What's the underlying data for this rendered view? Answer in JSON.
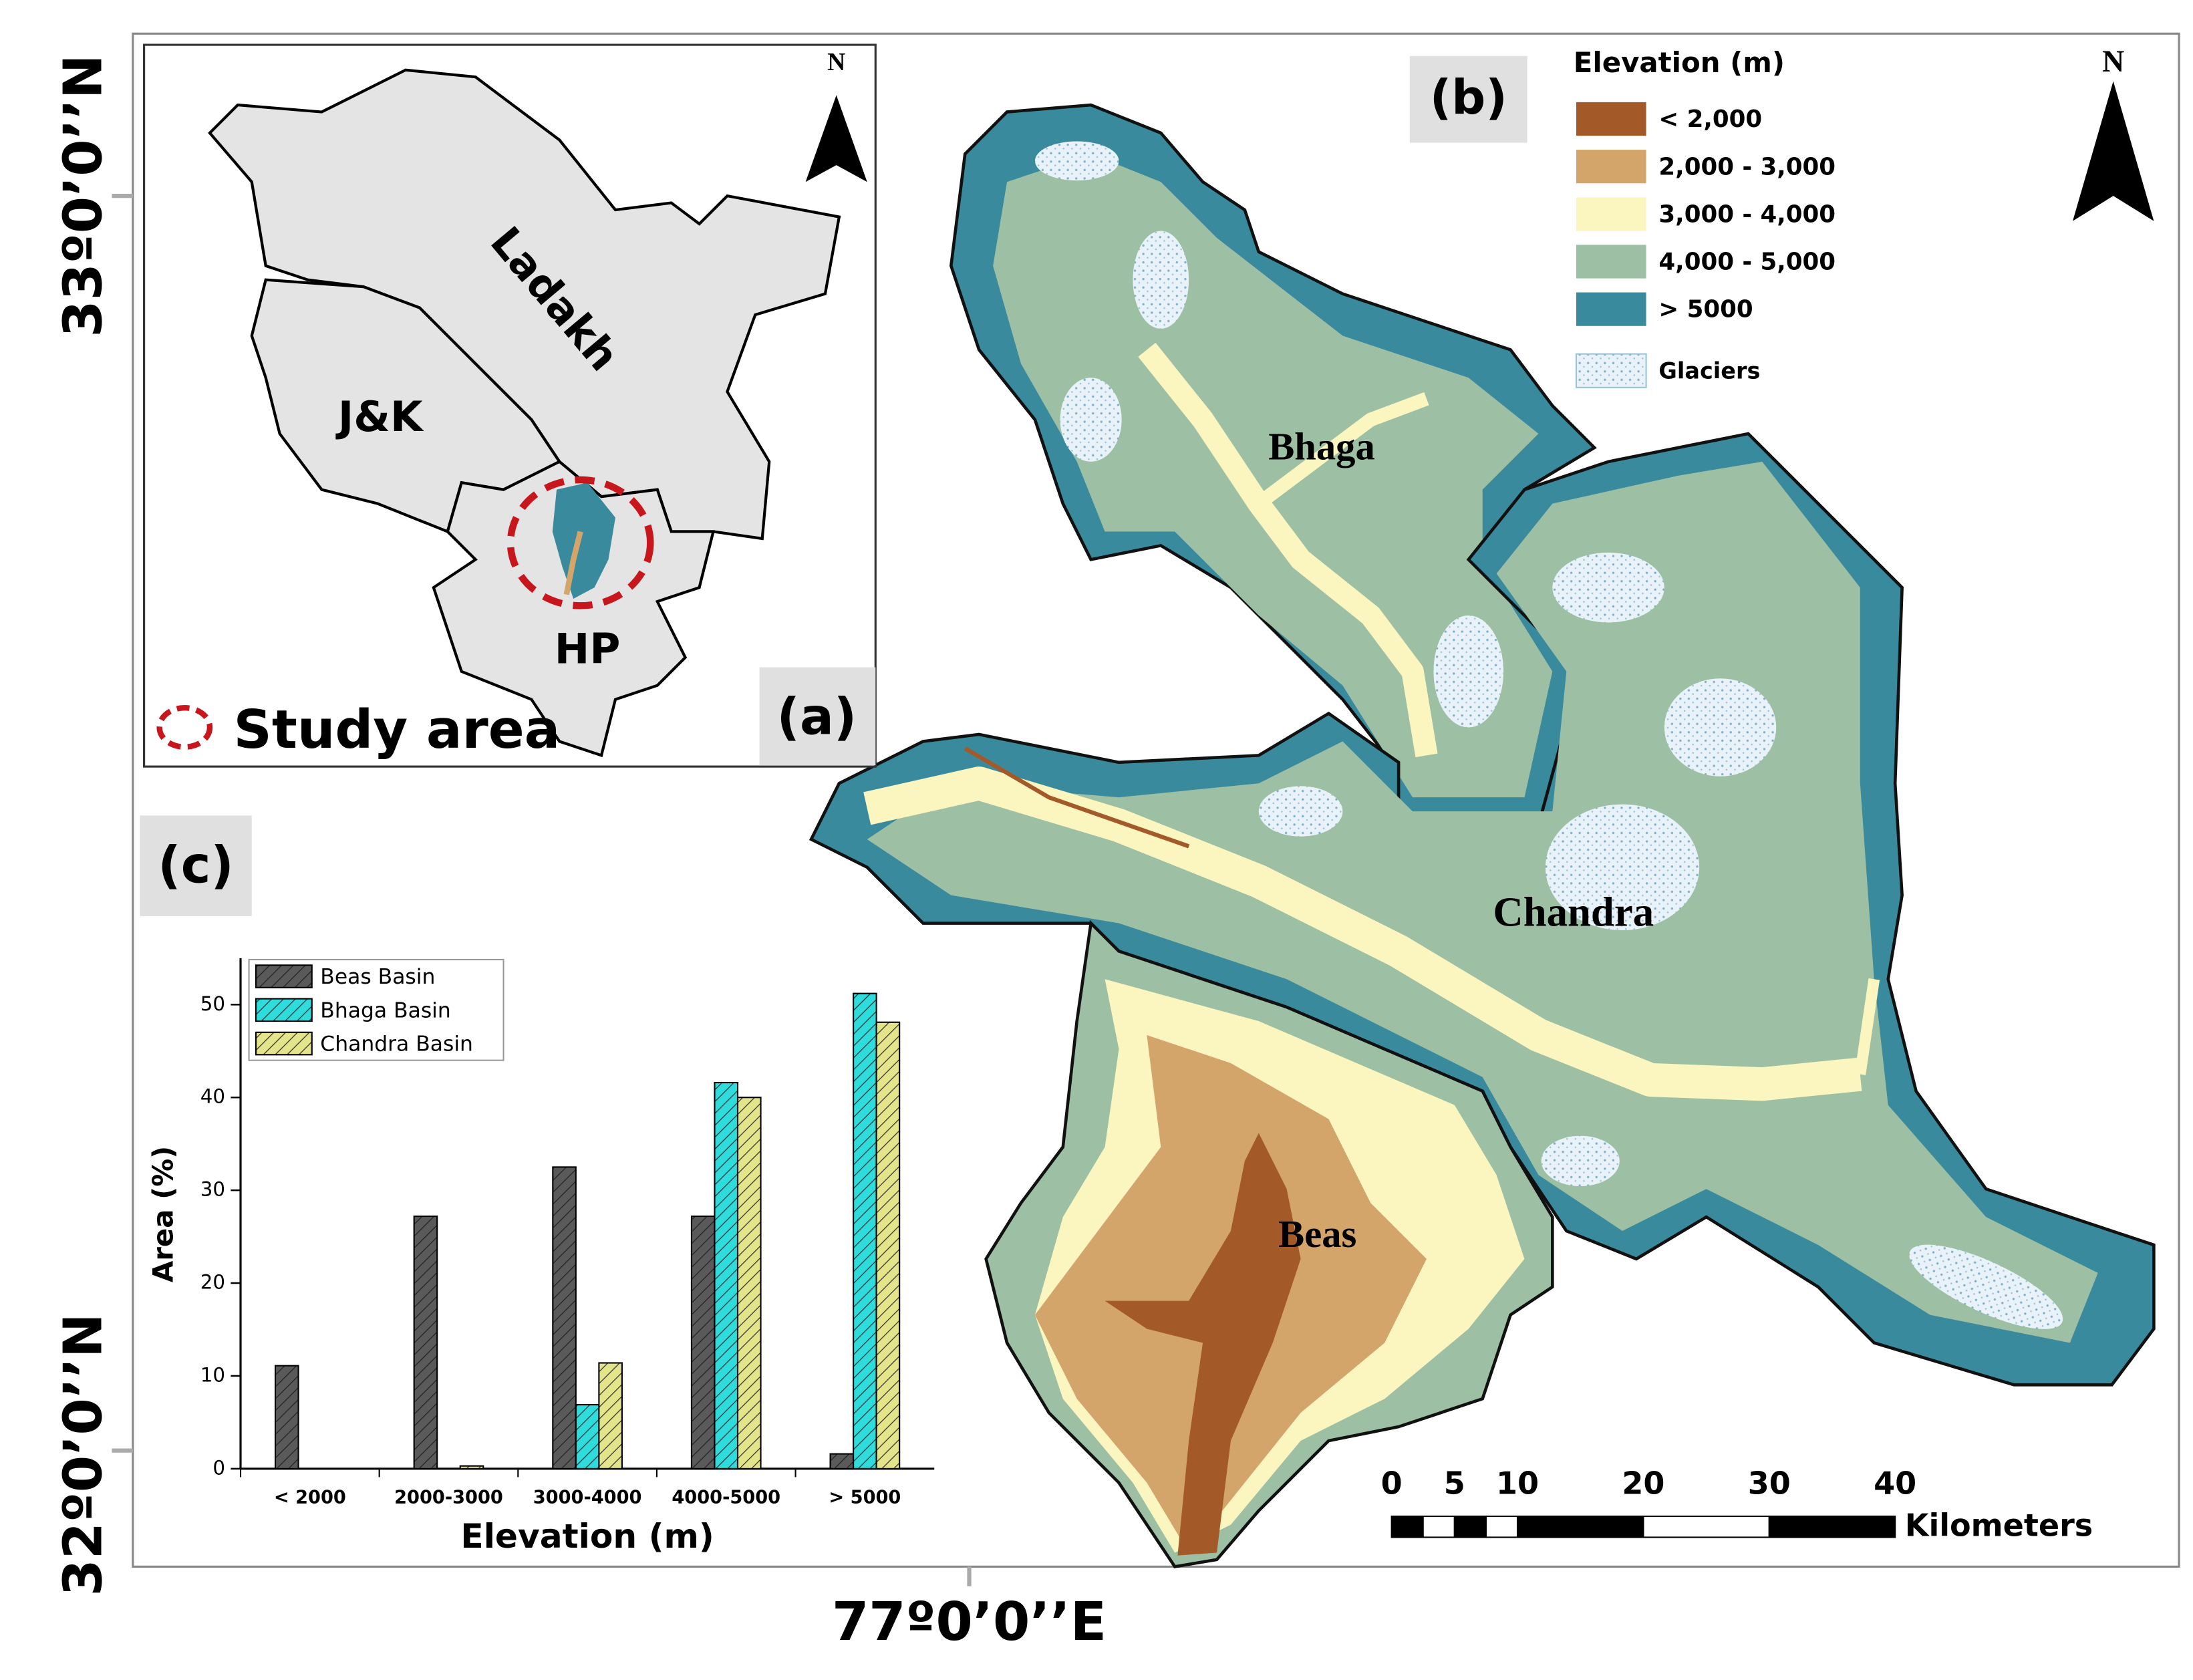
{
  "coordinates": {
    "lat_top": "33º0’0’’N",
    "lat_bottom": "32º0’0’’N",
    "lon": "77º0’0’’E"
  },
  "panel_a": {
    "label": "(a)",
    "north": "N",
    "regions": [
      "Ladakh",
      "J&K",
      "HP"
    ],
    "study_area": "Study area"
  },
  "panel_b": {
    "label": "(b)",
    "north": "N",
    "legend_title": "Elevation (m)",
    "legend": [
      {
        "label": "< 2,000",
        "color": "#a35a28"
      },
      {
        "label": "2,000 - 3,000",
        "color": "#d4a56a"
      },
      {
        "label": "3,000 - 4,000",
        "color": "#fbf5c0"
      },
      {
        "label": "4,000 - 5,000",
        "color": "#9dbfa4"
      },
      {
        "label": "> 5000",
        "color": "#3a8a9e"
      },
      {
        "label": "Glaciers",
        "color": "#e8f2f8"
      }
    ],
    "basins": [
      "Bhaga",
      "Chandra",
      "Beas"
    ],
    "scale": {
      "ticks": [
        0,
        5,
        10,
        20,
        30,
        40
      ],
      "unit": "Kilometers"
    }
  },
  "chart_data": {
    "type": "bar",
    "label": "(c)",
    "xlabel": "Elevation (m)",
    "ylabel": "Area (%)",
    "categories": [
      "< 2000",
      "2000-3000",
      "3000-4000",
      "4000-5000",
      "> 5000"
    ],
    "series": [
      {
        "name": "Beas Basin",
        "color": "#5a5a5a",
        "values": [
          11.1,
          27.2,
          32.5,
          27.2,
          1.6
        ]
      },
      {
        "name": "Bhaga Basin",
        "color": "#2fdcdc",
        "values": [
          0,
          0,
          6.9,
          41.6,
          51.2
        ]
      },
      {
        "name": "Chandra Basin",
        "color": "#e4e48a",
        "values": [
          0,
          0.3,
          11.4,
          40.0,
          48.1
        ]
      }
    ],
    "ylim": [
      0,
      55
    ],
    "yticks": [
      0,
      10,
      20,
      30,
      40,
      50
    ],
    "legend": "upper left",
    "hatch": true
  }
}
